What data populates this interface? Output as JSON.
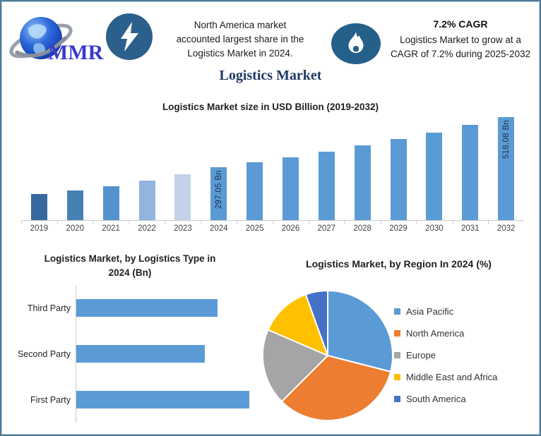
{
  "page": {
    "background": "#FFFFFF",
    "border_color": "#4E7A96"
  },
  "header": {
    "logo": {
      "text": "MMR",
      "icon": "globe-swoosh-logo",
      "text_color": "#3A3ACF"
    },
    "bolt_icon_color": "#2B608C",
    "flame_icon_color": "#25608A",
    "left_note": {
      "lines": [
        "North America market",
        "accounted largest share in the",
        "Logistics Market in 2024."
      ]
    },
    "right_note": {
      "heading": "7.2% CAGR",
      "lines": [
        "Logistics Market to grow at a",
        "CAGR of 7.2% during 2025-2032"
      ]
    }
  },
  "title": {
    "text": "Logistics Market",
    "color": "#1F3864"
  },
  "chart_data": [
    {
      "type": "bar",
      "title": "Logistics Market size in USD Billion (2019-2032)",
      "unit": "USD Billion",
      "categories": [
        "2019",
        "2020",
        "2021",
        "2022",
        "2023",
        "2024",
        "2025",
        "2026",
        "2027",
        "2028",
        "2029",
        "2030",
        "2031",
        "2032"
      ],
      "values": [
        180,
        196,
        215,
        240,
        265,
        297.05,
        318.44,
        341.37,
        365.95,
        392.29,
        420.54,
        450.82,
        483.28,
        518.08
      ],
      "value_labels": [
        "",
        "",
        "",
        "",
        "",
        "297.05 Bn",
        "",
        "",
        "",
        "",
        "",
        "",
        "",
        "518.08 Bn"
      ],
      "bar_colors": [
        "#38699E",
        "#4781B4",
        "#5492CE",
        "#92B5DE",
        "#C3D2EA",
        "#5B9BD5",
        "#5B9BD5",
        "#5B9BD5",
        "#5B9BD5",
        "#5B9BD5",
        "#5B9BD5",
        "#5B9BD5",
        "#5B9BD5",
        "#5B9BD5"
      ],
      "ylim": [
        65,
        530
      ],
      "grid": false,
      "legend": false
    },
    {
      "type": "bar",
      "orientation": "horizontal",
      "title_lines": [
        "Logistics Market, by Logistics Type in",
        "2024 (Bn)"
      ],
      "title": "Logistics Market, by Logistics Type in 2024 (Bn)",
      "categories": [
        "Third Party",
        "Second Party",
        "First Party"
      ],
      "values": [
        95,
        86,
        116
      ],
      "xlim": [
        0,
        118
      ],
      "bar_color": "#5B9BD5",
      "grid": false,
      "legend": false
    },
    {
      "type": "pie",
      "title": "Logistics Market, by Region In 2024 (%)",
      "labels": [
        "Asia Pacific",
        "North America",
        "Europe",
        "Middle East and Africa",
        "South America"
      ],
      "values": [
        29,
        33.5,
        19,
        13,
        5.5
      ],
      "colors": [
        "#5B9BD5",
        "#ED7D31",
        "#A5A5A5",
        "#FFC000",
        "#4472C4"
      ],
      "start_angle_deg": 0,
      "direction": "clockwise",
      "legend_position": "right"
    }
  ]
}
